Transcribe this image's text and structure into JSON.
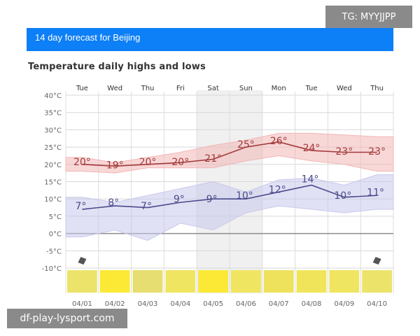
{
  "watermark_top": "TG: MYYJJPP",
  "watermark_bottom": "df-play-lysport.com",
  "banner_title": "14 day forecast for Beijing",
  "chart_data": {
    "type": "line",
    "title": "Temperature daily highs and lows",
    "days": [
      "Tue",
      "Wed",
      "Thu",
      "Fri",
      "Sat",
      "Sun",
      "Mon",
      "Tue",
      "Wed",
      "Thu"
    ],
    "dates": [
      "04/01",
      "04/02",
      "04/03",
      "04/04",
      "04/05",
      "04/06",
      "04/07",
      "04/08",
      "04/09",
      "04/10"
    ],
    "yticks": [
      "40°C",
      "35°C",
      "30°C",
      "25°C",
      "20°C",
      "15°C",
      "10°C",
      "5°C",
      "0°C",
      "-5°C",
      "-10°C"
    ],
    "ylim": [
      -10,
      40
    ],
    "series": [
      {
        "values": [
          20,
          19,
          20,
          20,
          21,
          25,
          26,
          24,
          23,
          23
        ],
        "labels": [
          "20°",
          "19°",
          "20°",
          "20°",
          "21°",
          "25°",
          "26°",
          "24°",
          "23°",
          "23°"
        ],
        "line": [
          20,
          19.5,
          20,
          20.5,
          21.5,
          25,
          26.5,
          24,
          23.5,
          23.5
        ],
        "band_upper": [
          22,
          20.5,
          22,
          23.5,
          25.5,
          27,
          29,
          29,
          28.5,
          28
        ],
        "band_lower": [
          18,
          17.5,
          19,
          19,
          19,
          21,
          22.5,
          21,
          20,
          18
        ],
        "color": "#a33a3a",
        "band_color": "#f3b6b6"
      },
      {
        "values": [
          7,
          8,
          7,
          9,
          9,
          10,
          12,
          14,
          10,
          11
        ],
        "labels": [
          "7°",
          "8°",
          "7°",
          "9°",
          "9°",
          "10°",
          "12°",
          "14°",
          "10°",
          "11°"
        ],
        "line": [
          7,
          8,
          7.5,
          9,
          10,
          10,
          12,
          14,
          10.5,
          11
        ],
        "band_upper": [
          10.5,
          9,
          11,
          13,
          15,
          12,
          15.5,
          16,
          14,
          17
        ],
        "band_lower": [
          -1,
          1,
          -2,
          3,
          1,
          6,
          8,
          7,
          6,
          7
        ],
        "color": "#4a4a8c",
        "band_color": "#c8c8ec"
      }
    ],
    "weekend_shading": [
      "Sat",
      "Sun"
    ],
    "rain_icon_days": [
      "Tue",
      "Thu"
    ],
    "icon_colors": [
      "#ece36a",
      "#fbe935",
      "#e6de70",
      "#f0e560",
      "#fbe935",
      "#f0e560",
      "#eee15c",
      "#f0e55a",
      "#f0e560",
      "#ece36a"
    ],
    "grid": true,
    "line_colors": {
      "high": "#a33a3a",
      "low": "#4a4a8c"
    }
  }
}
